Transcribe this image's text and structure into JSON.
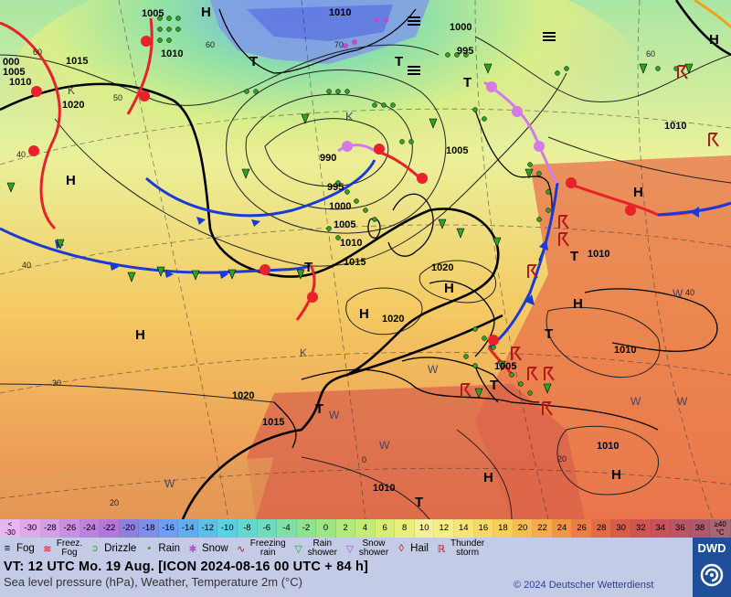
{
  "map": {
    "pressure_labels": [
      "1005",
      "1010",
      "1010",
      "1015",
      "1020",
      "1000",
      "995",
      "990",
      "995",
      "1000",
      "1005",
      "1010",
      "1015",
      "1020",
      "1020",
      "1005",
      "1010",
      "1010",
      "1005",
      "1015",
      "1020",
      "1010",
      "1010",
      "1010",
      "000",
      "1005",
      "1010"
    ],
    "pressure_centres": [
      "H",
      "H",
      "H",
      "H",
      "H",
      "H",
      "H",
      "H",
      "T",
      "T",
      "T",
      "T",
      "T",
      "T",
      "T",
      "T",
      "T",
      "H",
      "H"
    ],
    "temp_labels": [
      "60",
      "60",
      "60",
      "50",
      "40",
      "40",
      "30",
      "20",
      "40",
      "70",
      "20",
      "0"
    ],
    "small_letters": [
      "K",
      "K",
      "K",
      "W",
      "W",
      "W",
      "W",
      "W",
      "W",
      "W"
    ]
  },
  "scale": {
    "first": "<\n-30",
    "values": [
      "-30",
      "-28",
      "-26",
      "-24",
      "-22",
      "-20",
      "-18",
      "-16",
      "-14",
      "-12",
      "-10",
      "-8",
      "-6",
      "-4",
      "-2",
      "0",
      "2",
      "4",
      "6",
      "8",
      "10",
      "12",
      "14",
      "16",
      "18",
      "20",
      "22",
      "24",
      "26",
      "28",
      "30",
      "32",
      "34",
      "36",
      "38"
    ],
    "last": "≥40\n°C",
    "colors": [
      "#e3a8ec",
      "#d59ee7",
      "#c98fe0",
      "#bd82dc",
      "#b378d6",
      "#8e7fe0",
      "#7f8fe8",
      "#6f9ff0",
      "#5fafee",
      "#5dbfe8",
      "#5ecfe0",
      "#63d7cf",
      "#6fdcbd",
      "#7fe0a6",
      "#8fe38f",
      "#9ee681",
      "#b1e97a",
      "#c4ec74",
      "#d7ee72",
      "#e8f07a",
      "#f5f19a",
      "#f6ed86",
      "#f6e474",
      "#f7da66",
      "#f7cd5c",
      "#f6bd55",
      "#f4aa4e",
      "#f09448",
      "#ea7f45",
      "#e26c45",
      "#d85c48",
      "#cf5450",
      "#c55359",
      "#b95663",
      "#ad5b6c"
    ]
  },
  "weather_legend": [
    {
      "icon": "fog-icon",
      "label": "Fog",
      "glyph": "≡"
    },
    {
      "icon": "freezing-fog-icon",
      "label": "Freez.\nFog",
      "glyph": "≋"
    },
    {
      "icon": "drizzle-icon",
      "label": "Drizzle",
      "glyph": "ↄ"
    },
    {
      "icon": "rain-icon",
      "label": "Rain",
      "glyph": "•"
    },
    {
      "icon": "snow-icon",
      "label": "Snow",
      "glyph": "✱"
    },
    {
      "icon": "freezing-rain-icon",
      "label": "Freezing\nrain",
      "glyph": "∿"
    },
    {
      "icon": "rain-shower-icon",
      "label": "Rain\nshower",
      "glyph": "▽"
    },
    {
      "icon": "snow-shower-icon",
      "label": "Snow\nshower",
      "glyph": "▽"
    },
    {
      "icon": "hail-icon",
      "label": "Hail",
      "glyph": "◊"
    },
    {
      "icon": "thunderstorm-icon",
      "label": "Thunder\nstorm",
      "glyph": "ℝ"
    }
  ],
  "footer": {
    "valid_time": "VT: 12 UTC Mo.   19 Aug. [ICON 2024-08-16   00 UTC + 84 h]",
    "subtitle": "Sea level pressure (hPa), Weather, Temperature 2m (°C)",
    "copyright": "© 2024 Deutscher Wetterdienst",
    "logo": "DWD"
  },
  "colors": {
    "warm_front": "#e8222a",
    "cold_front": "#1a3ad8",
    "occlusion": "#d47be8",
    "legend_bg": "#c4cbe6",
    "logo_bg": "#1f4f9a"
  }
}
